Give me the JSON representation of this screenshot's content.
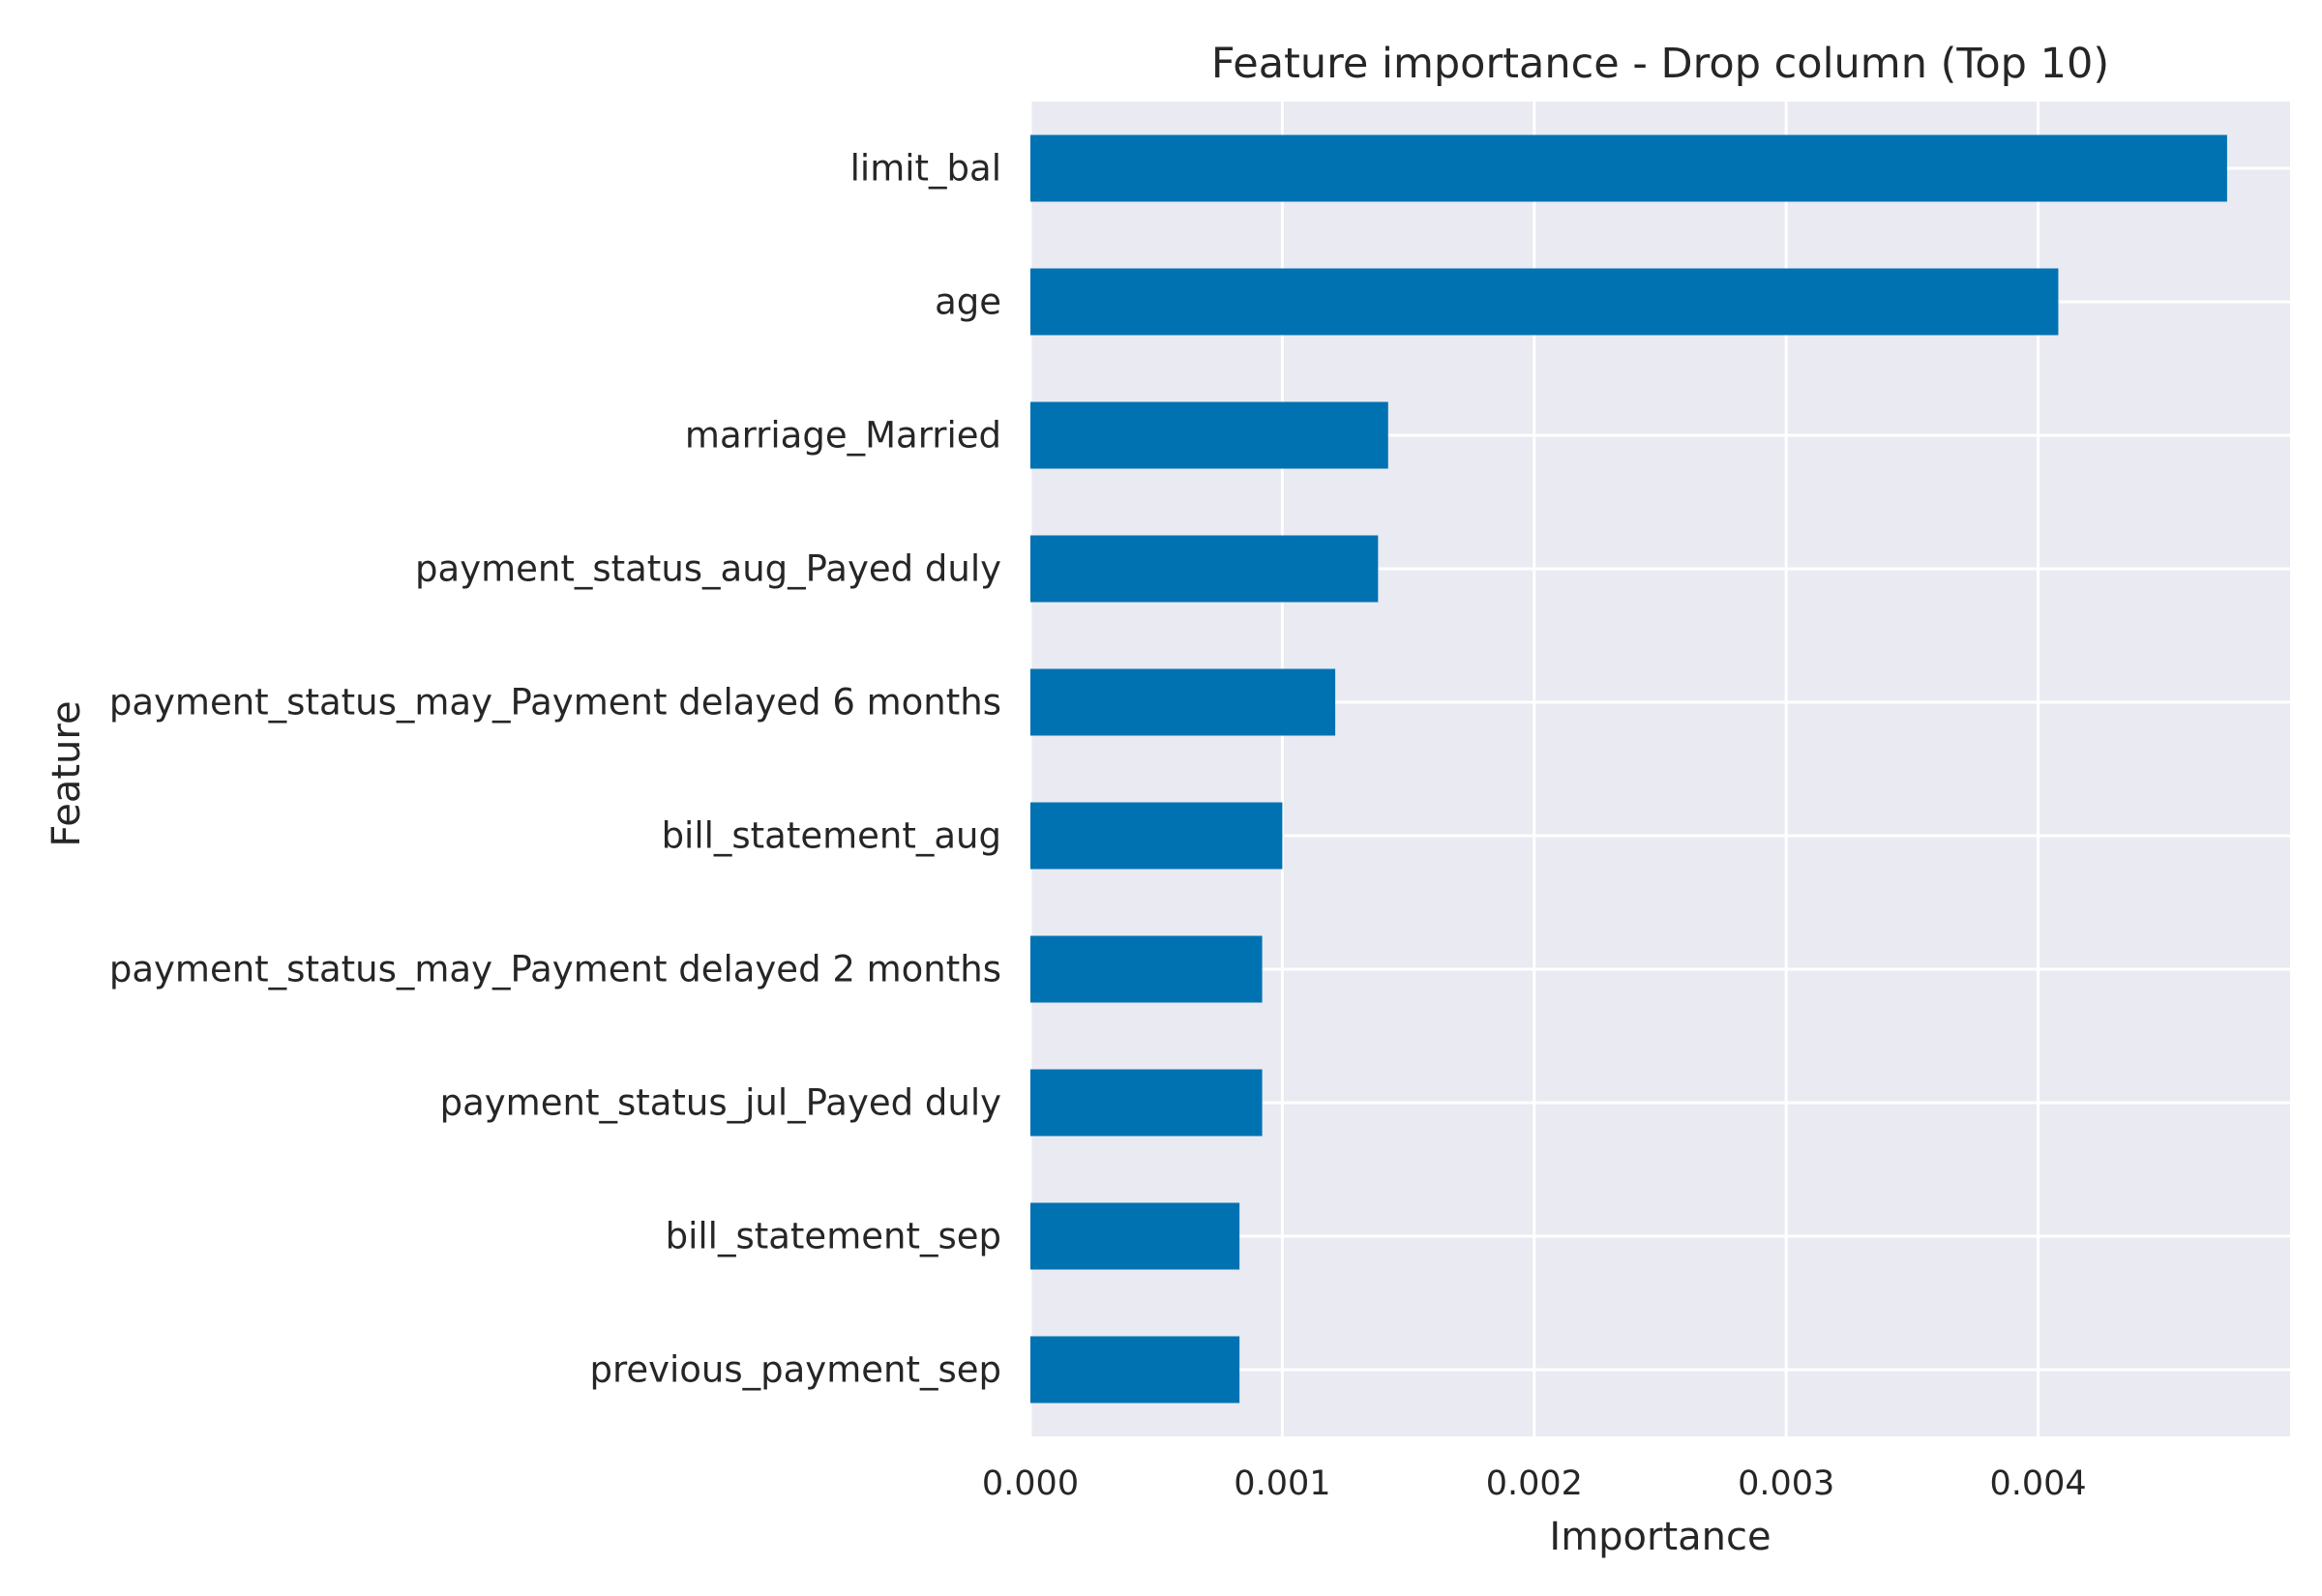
{
  "chart_data": {
    "type": "bar",
    "orientation": "horizontal",
    "title": "Feature importance - Drop column (Top 10)",
    "xlabel": "Importance",
    "ylabel": "Feature",
    "categories": [
      "limit_bal",
      "age",
      "marriage_Married",
      "payment_status_aug_Payed duly",
      "payment_status_may_Payment delayed 6 months",
      "bill_statement_aug",
      "payment_status_may_Payment delayed 2 months",
      "payment_status_jul_Payed duly",
      "bill_statement_sep",
      "previous_payment_sep"
    ],
    "values": [
      0.00475,
      0.00408,
      0.00142,
      0.00138,
      0.00121,
      0.001,
      0.00092,
      0.00092,
      0.00083,
      0.00083
    ],
    "xlim": [
      0,
      0.005
    ],
    "xticks": [
      0.0,
      0.001,
      0.002,
      0.003,
      0.004
    ],
    "xtick_labels": [
      "0.000",
      "0.001",
      "0.002",
      "0.003",
      "0.004"
    ],
    "grid": true,
    "colors": {
      "bar": "#0072b2",
      "plot_background": "#eaeaf2",
      "grid": "#ffffff",
      "text": "#262626"
    }
  }
}
